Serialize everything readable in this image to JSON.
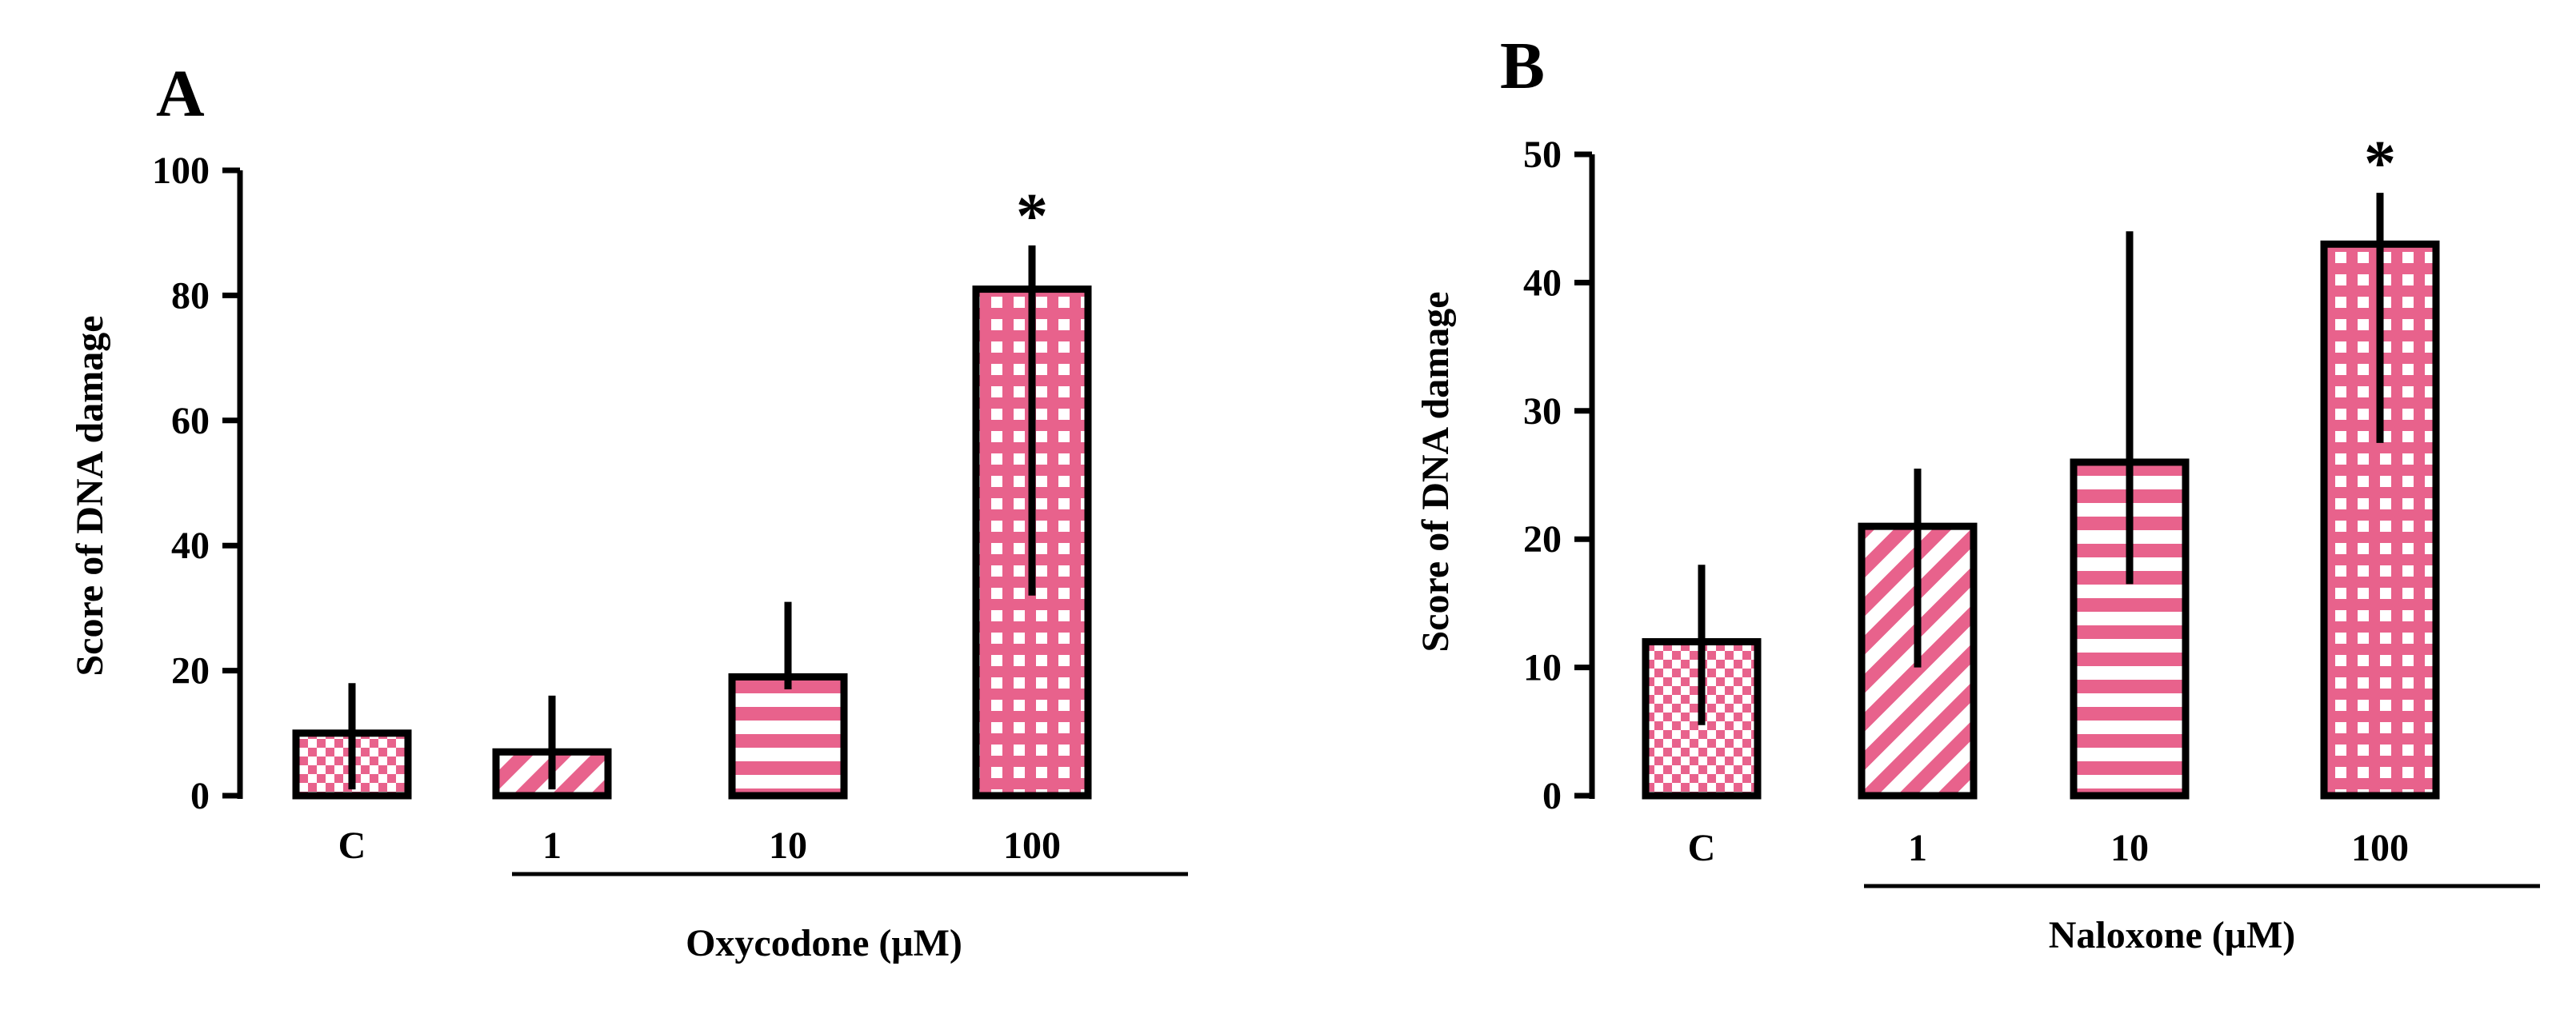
{
  "colors": {
    "bar_fill": "#e8628c",
    "bar_stroke": "#000000",
    "background": "#ffffff"
  },
  "chart_data": [
    {
      "type": "bar",
      "panel_label": "A",
      "title": "",
      "ylabel": "Score of DNA damage",
      "xlabel": "Oxycodone (μM)",
      "categories": [
        "C",
        "1",
        "10",
        "100"
      ],
      "values": [
        10,
        7,
        19,
        81
      ],
      "error_low": [
        1,
        1,
        17,
        32
      ],
      "error_high": [
        18,
        16,
        31,
        88
      ],
      "significance": [
        "",
        "",
        "",
        "*"
      ],
      "patterns": [
        "checker",
        "diagonal",
        "horizontal",
        "grid"
      ],
      "ylim": [
        0,
        100
      ],
      "yticks": [
        0,
        20,
        40,
        60,
        80,
        100
      ],
      "grid": false
    },
    {
      "type": "bar",
      "panel_label": "B",
      "title": "",
      "ylabel": "Score of DNA damage",
      "xlabel": "Naloxone (μM)",
      "categories": [
        "C",
        "1",
        "10",
        "100"
      ],
      "values": [
        12,
        21,
        26,
        43
      ],
      "error_low": [
        5.5,
        10,
        16.5,
        27.5
      ],
      "error_high": [
        18,
        25.5,
        44,
        47
      ],
      "significance": [
        "",
        "",
        "",
        "*"
      ],
      "patterns": [
        "checker",
        "diagonal",
        "horizontal",
        "grid"
      ],
      "ylim": [
        0,
        50
      ],
      "yticks": [
        0,
        10,
        20,
        30,
        40,
        50
      ],
      "grid": false
    }
  ]
}
